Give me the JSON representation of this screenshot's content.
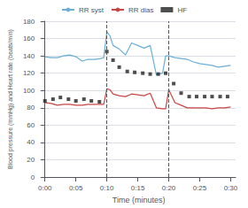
{
  "chart_data": {
    "type": "line",
    "xlabel": "Time (minutes)",
    "ylabel": "Blood pressure (mmHg) and Heart rate (beats/min)",
    "xlim": [
      -0.005,
      0.308
    ],
    "xticks": [
      {
        "value": 0,
        "label": "0:00"
      },
      {
        "value": 0.05,
        "label": "0:05"
      },
      {
        "value": 0.1,
        "label": "0:10"
      },
      {
        "value": 0.15,
        "label": "0:15"
      },
      {
        "value": 0.2,
        "label": "0:20"
      },
      {
        "value": 0.25,
        "label": "0:25"
      },
      {
        "value": 0.3,
        "label": "0:30"
      }
    ],
    "ylim": [
      0,
      180
    ],
    "yticks": [
      0,
      20,
      40,
      60,
      80,
      100,
      120,
      140,
      160,
      180
    ],
    "grid": true,
    "legend": "top",
    "vlines": [
      0.1,
      0.2
    ],
    "series": [
      {
        "name": "RR syst",
        "type": "line",
        "color": "#6baed6",
        "x": [
          0.0,
          0.01,
          0.02,
          0.03,
          0.04,
          0.05,
          0.06,
          0.07,
          0.08,
          0.09,
          0.095,
          0.1,
          0.105,
          0.11,
          0.12,
          0.13,
          0.14,
          0.15,
          0.16,
          0.17,
          0.18,
          0.19,
          0.195,
          0.2,
          0.21,
          0.22,
          0.23,
          0.24,
          0.25,
          0.26,
          0.27,
          0.28,
          0.29,
          0.3
        ],
        "values": [
          139,
          138,
          138,
          140,
          141,
          139,
          134,
          136,
          136,
          137,
          138,
          168,
          163,
          152,
          148,
          141,
          155,
          152,
          149,
          152,
          118,
          120,
          140,
          140,
          138,
          137,
          136,
          133,
          131,
          130,
          129,
          127,
          128,
          129
        ]
      },
      {
        "name": "RR dias",
        "type": "line",
        "color": "#cb4444",
        "x": [
          0.0,
          0.01,
          0.02,
          0.03,
          0.04,
          0.05,
          0.06,
          0.07,
          0.08,
          0.09,
          0.095,
          0.1,
          0.105,
          0.11,
          0.12,
          0.13,
          0.14,
          0.15,
          0.16,
          0.17,
          0.18,
          0.19,
          0.195,
          0.2,
          0.21,
          0.22,
          0.23,
          0.24,
          0.25,
          0.26,
          0.27,
          0.28,
          0.29,
          0.3
        ],
        "values": [
          86,
          85,
          83,
          84,
          84,
          83,
          83,
          84,
          84,
          84,
          84,
          102,
          101,
          96,
          94,
          93,
          96,
          95,
          94,
          97,
          80,
          79,
          79,
          101,
          86,
          83,
          80,
          80,
          80,
          80,
          79,
          80,
          80,
          81
        ]
      },
      {
        "name": "HF",
        "type": "scatter",
        "marker": "square",
        "color": "#222222",
        "x": [
          0.0,
          0.013,
          0.025,
          0.038,
          0.05,
          0.063,
          0.075,
          0.088,
          0.1,
          0.11,
          0.12,
          0.133,
          0.145,
          0.158,
          0.17,
          0.183,
          0.195,
          0.208,
          0.22,
          0.233,
          0.245,
          0.258,
          0.27,
          0.283,
          0.295
        ],
        "values": [
          88,
          90,
          92,
          90,
          88,
          90,
          88,
          87,
          145,
          135,
          127,
          122,
          121,
          120,
          119,
          119,
          120,
          108,
          97,
          93,
          93,
          93,
          93,
          93,
          93
        ]
      }
    ]
  }
}
